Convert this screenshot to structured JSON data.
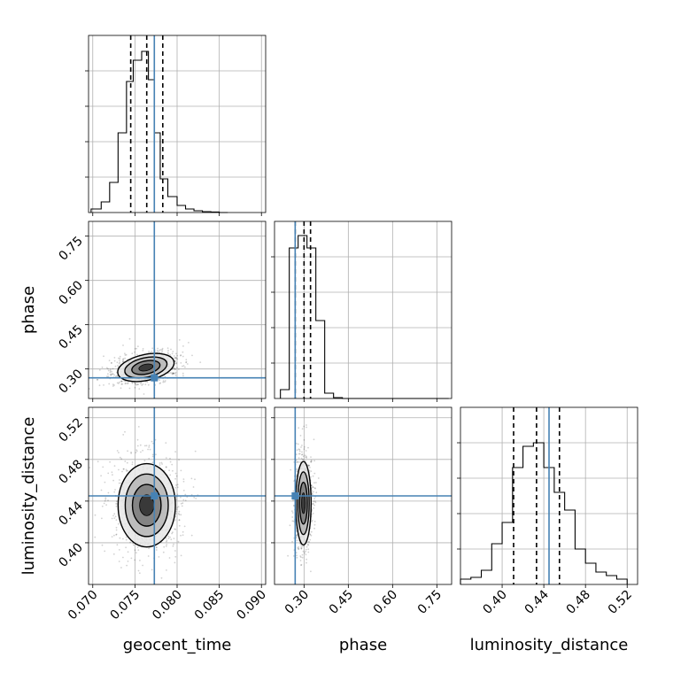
{
  "chart_data": {
    "type": "corner",
    "parameters": [
      "geocent_time",
      "phase",
      "luminosity_distance"
    ],
    "truth": {
      "geocent_time": 0.0773,
      "phase": 0.27,
      "luminosity_distance": 0.445
    },
    "truth_color": "#4682b4",
    "grid": true,
    "histograms": [
      {
        "param": "geocent_time",
        "range": [
          0.0695,
          0.0905
        ],
        "bin_edges": [
          0.0698,
          0.071,
          0.072,
          0.073,
          0.074,
          0.0748,
          0.0758,
          0.0766,
          0.0773,
          0.078,
          0.0789,
          0.08,
          0.081,
          0.082,
          0.083,
          0.084,
          0.085,
          0.086
        ],
        "counts": [
          0.02,
          0.06,
          0.17,
          0.45,
          0.74,
          0.86,
          0.91,
          0.75,
          0.45,
          0.19,
          0.09,
          0.04,
          0.02,
          0.01,
          0.005,
          0.003,
          0
        ],
        "quantiles": [
          0.0745,
          0.0764,
          0.0783
        ],
        "x_ticks": [
          0.07,
          0.075,
          0.08,
          0.085,
          0.09
        ],
        "x_tick_labels": [
          "0.070",
          "0.075",
          "0.080",
          "0.085",
          "0.090"
        ]
      },
      {
        "param": "phase",
        "range": [
          0.2,
          0.8
        ],
        "bin_edges": [
          0.22,
          0.25,
          0.28,
          0.31,
          0.34,
          0.37,
          0.4,
          0.43,
          0.46,
          0.49,
          0.52,
          0.55,
          0.58,
          0.61,
          0.64,
          0.67,
          0.7,
          0.73,
          0.76,
          0.79
        ],
        "counts": [
          0.05,
          0.85,
          0.92,
          0.85,
          0.44,
          0.03,
          0.005,
          0,
          0,
          0,
          0,
          0,
          0,
          0,
          0,
          0,
          0,
          0,
          0
        ],
        "quantiles": [
          0.27,
          0.3,
          0.322
        ],
        "x_ticks": [
          0.3,
          0.45,
          0.6,
          0.75
        ],
        "x_tick_labels": [
          "0.30",
          "0.45",
          "0.60",
          "0.75"
        ]
      },
      {
        "param": "luminosity_distance",
        "range": [
          0.36,
          0.53
        ],
        "bin_edges": [
          0.36,
          0.37,
          0.38,
          0.39,
          0.4,
          0.41,
          0.42,
          0.43,
          0.44,
          0.45,
          0.46,
          0.47,
          0.48,
          0.49,
          0.5,
          0.51,
          0.52
        ],
        "counts": [
          0.03,
          0.04,
          0.08,
          0.23,
          0.35,
          0.66,
          0.78,
          0.8,
          0.66,
          0.52,
          0.42,
          0.2,
          0.12,
          0.07,
          0.05,
          0.03
        ],
        "quantiles": [
          0.411,
          0.433,
          0.455
        ],
        "x_ticks": [
          0.4,
          0.44,
          0.48,
          0.52
        ],
        "x_tick_labels": [
          "0.40",
          "0.44",
          "0.48",
          "0.52"
        ]
      }
    ],
    "panels_2d": [
      {
        "x": "geocent_time",
        "y": "phase",
        "xlim": [
          0.0695,
          0.0905
        ],
        "ylim": [
          0.2,
          0.8
        ],
        "center": [
          0.0763,
          0.305
        ],
        "spread": [
          0.0017,
          0.022
        ],
        "tilt_deg": -12,
        "y_ticks": [
          0.3,
          0.45,
          0.6,
          0.75
        ],
        "y_tick_labels": [
          "0.30",
          "0.45",
          "0.60",
          "0.75"
        ]
      },
      {
        "x": "geocent_time",
        "y": "luminosity_distance",
        "xlim": [
          0.0695,
          0.0905
        ],
        "ylim": [
          0.36,
          0.53
        ],
        "center": [
          0.0764,
          0.436
        ],
        "spread": [
          0.0017,
          0.02
        ],
        "tilt_deg": 0,
        "y_ticks": [
          0.4,
          0.44,
          0.48,
          0.52
        ],
        "y_tick_labels": [
          "0.40",
          "0.44",
          "0.48",
          "0.52"
        ]
      },
      {
        "x": "phase",
        "y": "luminosity_distance",
        "xlim": [
          0.2,
          0.8
        ],
        "ylim": [
          0.36,
          0.53
        ],
        "center": [
          0.298,
          0.438
        ],
        "spread": [
          0.013,
          0.02
        ],
        "tilt_deg": 0,
        "y_ticks": [
          0.4,
          0.44,
          0.48,
          0.52
        ],
        "y_tick_labels": [
          "0.40",
          "0.44",
          "0.48",
          "0.52"
        ]
      }
    ],
    "axis_labels": {
      "bottom": [
        "geocent_time",
        "phase",
        "luminosity_distance"
      ],
      "left": [
        "phase",
        "luminosity_distance"
      ]
    }
  }
}
